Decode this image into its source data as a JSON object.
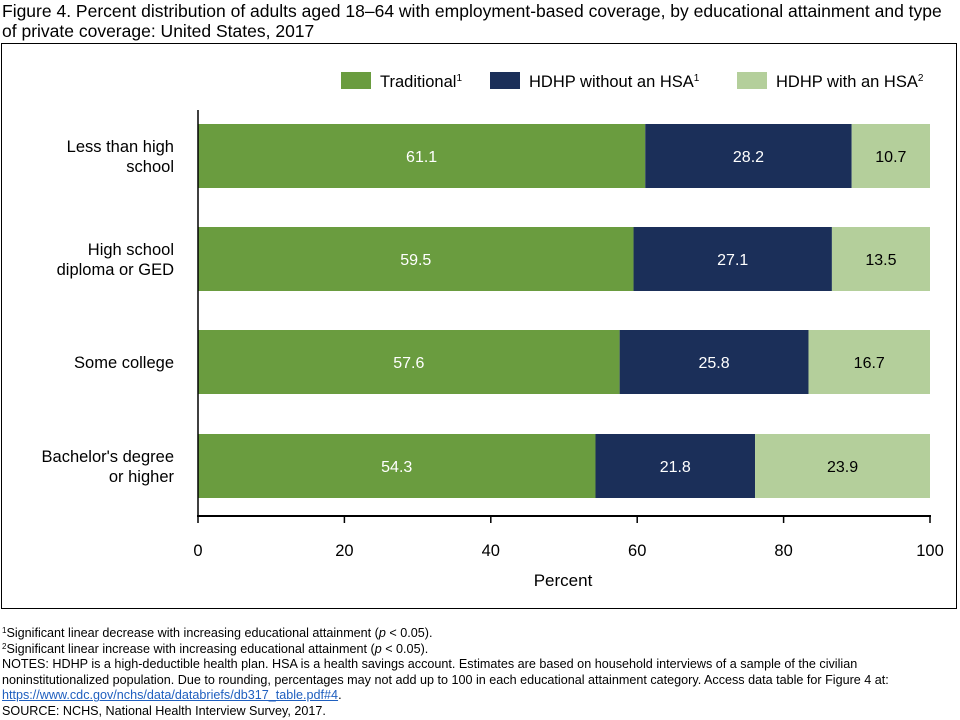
{
  "figure": {
    "title": "Figure 4. Percent distribution of adults aged 18–64 with employment-based coverage, by educational attainment and type of private coverage: United States, 2017"
  },
  "chart_data": {
    "type": "bar",
    "orientation": "horizontal",
    "stacked": true,
    "categories": [
      [
        "Less than high",
        "school"
      ],
      [
        "High school",
        "diploma or GED"
      ],
      [
        "Some college"
      ],
      [
        "Bachelor's degree",
        "or higher"
      ]
    ],
    "series": [
      {
        "name": "Traditional",
        "sup": "1",
        "color": "#6a9c3f",
        "label_color": "#ffffff",
        "values": [
          61.1,
          59.5,
          57.6,
          54.3
        ]
      },
      {
        "name": "HDHP without an HSA",
        "sup": "1",
        "color": "#1b2f59",
        "label_color": "#ffffff",
        "values": [
          28.2,
          27.1,
          25.8,
          21.8
        ]
      },
      {
        "name": "HDHP with an HSA",
        "sup": "2",
        "color": "#b4cf9b",
        "label_color": "#000000",
        "values": [
          10.7,
          13.5,
          16.7,
          23.9
        ]
      }
    ],
    "xlabel": "Percent",
    "xlim": [
      0,
      100
    ],
    "xticks": [
      0,
      20,
      40,
      60,
      80,
      100
    ],
    "legend_position": "top-right",
    "grid": false
  },
  "footnotes": {
    "fn1_sup": "1",
    "fn1_before": "Significant linear decrease with increasing educational attainment (",
    "fn1_p": "p",
    "fn1_after": " < 0.05).",
    "fn2_sup": "2",
    "fn2_before": "Significant linear increase with increasing educational attainment (",
    "fn2_p": "p",
    "fn2_after": " < 0.05).",
    "notes_text": "NOTES: HDHP is a high-deductible health plan. HSA is a health savings account. Estimates are based on household interviews of a sample of the civilian noninstitutionalized population. Due to rounding, percentages may not add up to 100 in each educational attainment category. Access data table for Figure 4 at: ",
    "notes_link": "https://www.cdc.gov/nchs/data/databriefs/db317_table.pdf#4",
    "notes_end": ".",
    "source": "SOURCE: NCHS, National Health Interview Survey, 2017."
  }
}
